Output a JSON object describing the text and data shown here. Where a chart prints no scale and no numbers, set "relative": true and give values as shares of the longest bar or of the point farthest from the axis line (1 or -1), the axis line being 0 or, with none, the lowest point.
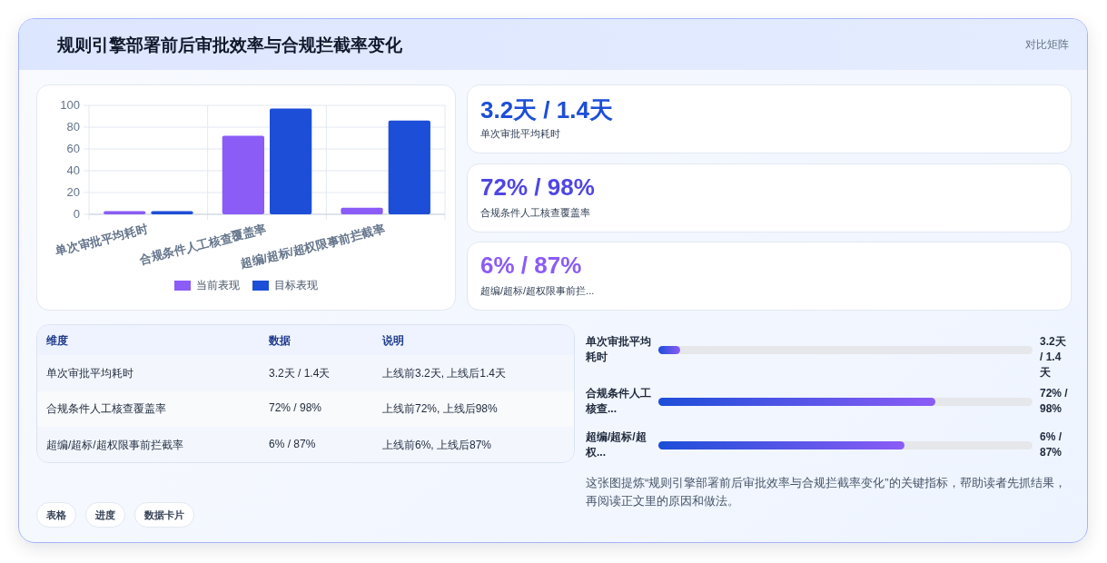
{
  "chart_data": [
    {
      "type": "other",
      "title": "规则引擎部署前后审批效率与合规拦截率变化",
      "annotations": [
        "对比矩阵"
      ]
    },
    {
      "type": "bar",
      "categories": [
        "单次审批平均耗时",
        "合规条件人工核查覆盖率",
        "超编/超标/超权限事前拦截率"
      ],
      "series": [
        {
          "name": "当前表现",
          "color": "#8b5cf6",
          "values": [
            3,
            72,
            6
          ]
        },
        {
          "name": "目标表现",
          "color": "#1d4ed8",
          "values": [
            3,
            97,
            86
          ]
        }
      ],
      "ylim": [
        0,
        100
      ],
      "yticks": [
        0,
        20,
        40,
        60,
        80,
        100
      ],
      "grid": true,
      "legend": "bottom"
    },
    {
      "type": "other",
      "annotations": [
        "3.2天 / 1.4天",
        "单次审批平均耗时",
        "72% / 98%",
        "合规条件人工核查覆盖率",
        "6% / 87%",
        "超编/超标/超权限事前拦..."
      ],
      "colors": [
        "#1d4ed8",
        "#4f46e5",
        "#8b5cf6"
      ]
    },
    {
      "type": "other",
      "annotations": [
        "维度",
        "数据",
        "说明",
        "单次审批平均耗时",
        "3.2天 / 1.4天",
        "上线前3.2天, 上线后1.4天",
        "合规条件人工核查覆盖率",
        "72% / 98%",
        "上线前72%, 上线后98%",
        "超编/超标/超权限事前拦截率",
        "6% / 87%",
        "上线前6%, 上线后87%"
      ]
    },
    {
      "type": "bar",
      "orientation": "horizontal",
      "relative": true,
      "categories": [
        "单次审批平均耗时",
        "合规条件人工核查...",
        "超编/超标/超权..."
      ],
      "values": [
        0.08,
        1,
        0.89
      ],
      "annotations": [
        "3.2天 / 1.4天",
        "72% / 98%",
        "6% / 87%",
        "这张图提炼“规则引擎部署前后审批效率与合规拦截率变化”的关键指标，帮助读者先抓结果，再阅读正文里的原因和做法。"
      ]
    },
    {
      "type": "other",
      "annotations": [
        "表格",
        "进度",
        "数据卡片"
      ]
    }
  ]
}
